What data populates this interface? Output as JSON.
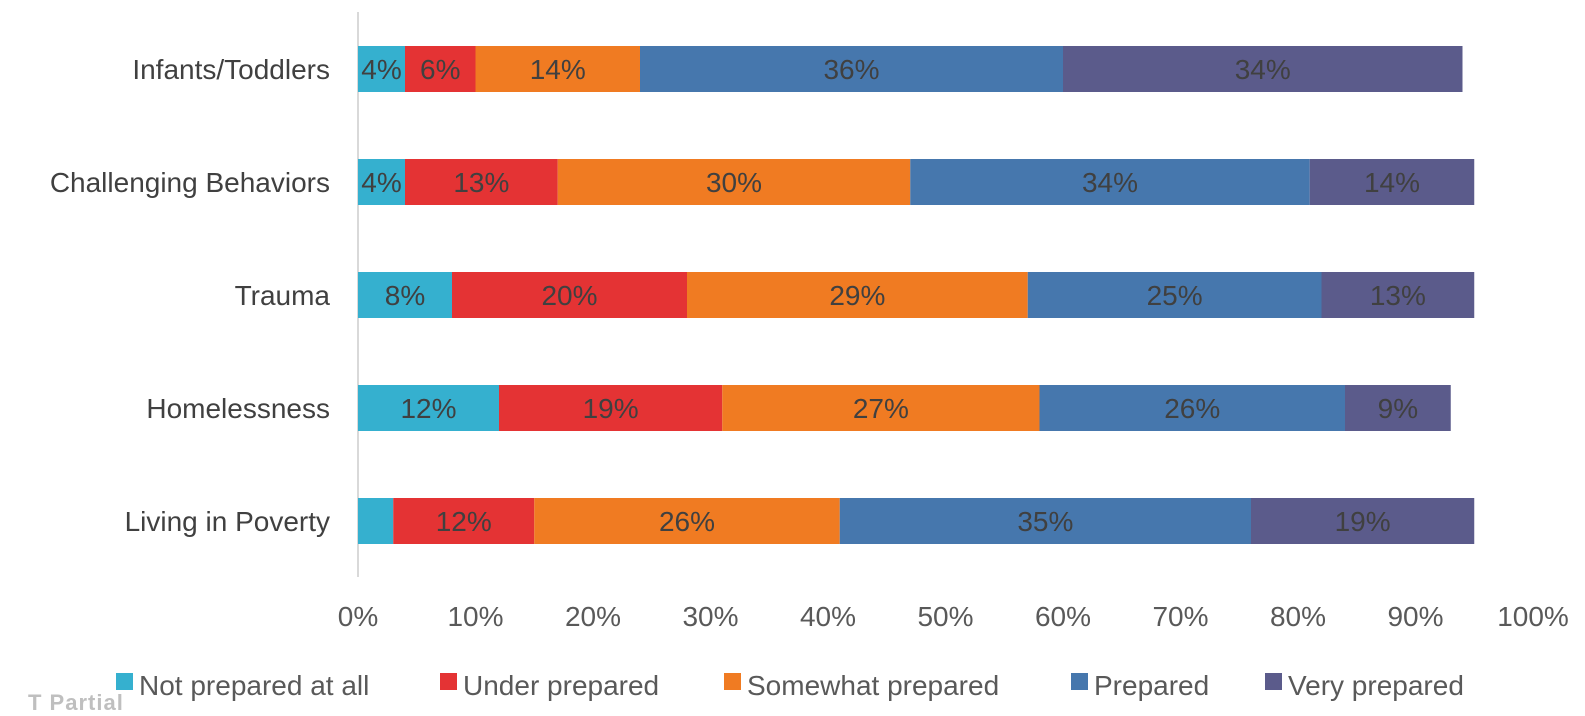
{
  "chart_data": {
    "type": "bar",
    "orientation": "horizontal",
    "stacked": true,
    "categories": [
      "Infants/Toddlers",
      "Challenging Behaviors",
      "Trauma",
      "Homelessness",
      "Living in Poverty"
    ],
    "series": [
      {
        "name": "Not prepared at all",
        "color": "#35b0cf",
        "values": [
          4,
          4,
          8,
          12,
          3
        ],
        "labels": [
          "4%",
          "4%",
          "8%",
          "12%",
          ""
        ]
      },
      {
        "name": "Under prepared",
        "color": "#e43334",
        "values": [
          6,
          13,
          20,
          19,
          12
        ],
        "labels": [
          "6%",
          "13%",
          "20%",
          "19%",
          "12%"
        ]
      },
      {
        "name": "Somewhat prepared",
        "color": "#f07b22",
        "values": [
          14,
          30,
          29,
          27,
          26
        ],
        "labels": [
          "14%",
          "30%",
          "29%",
          "27%",
          "26%"
        ]
      },
      {
        "name": "Prepared",
        "color": "#4677ad",
        "values": [
          36,
          34,
          25,
          26,
          35
        ],
        "labels": [
          "36%",
          "34%",
          "25%",
          "26%",
          "35%"
        ]
      },
      {
        "name": "Very prepared",
        "color": "#5b5b8b",
        "values": [
          34,
          14,
          13,
          9,
          19
        ],
        "labels": [
          "34%",
          "14%",
          "13%",
          "9%",
          "19%"
        ]
      }
    ],
    "xlim": [
      0,
      100
    ],
    "xticks": [
      "0%",
      "10%",
      "20%",
      "30%",
      "40%",
      "50%",
      "60%",
      "70%",
      "80%",
      "90%",
      "100%"
    ],
    "grid": false,
    "legend_position": "bottom"
  },
  "cutoff_text": "T Partial"
}
